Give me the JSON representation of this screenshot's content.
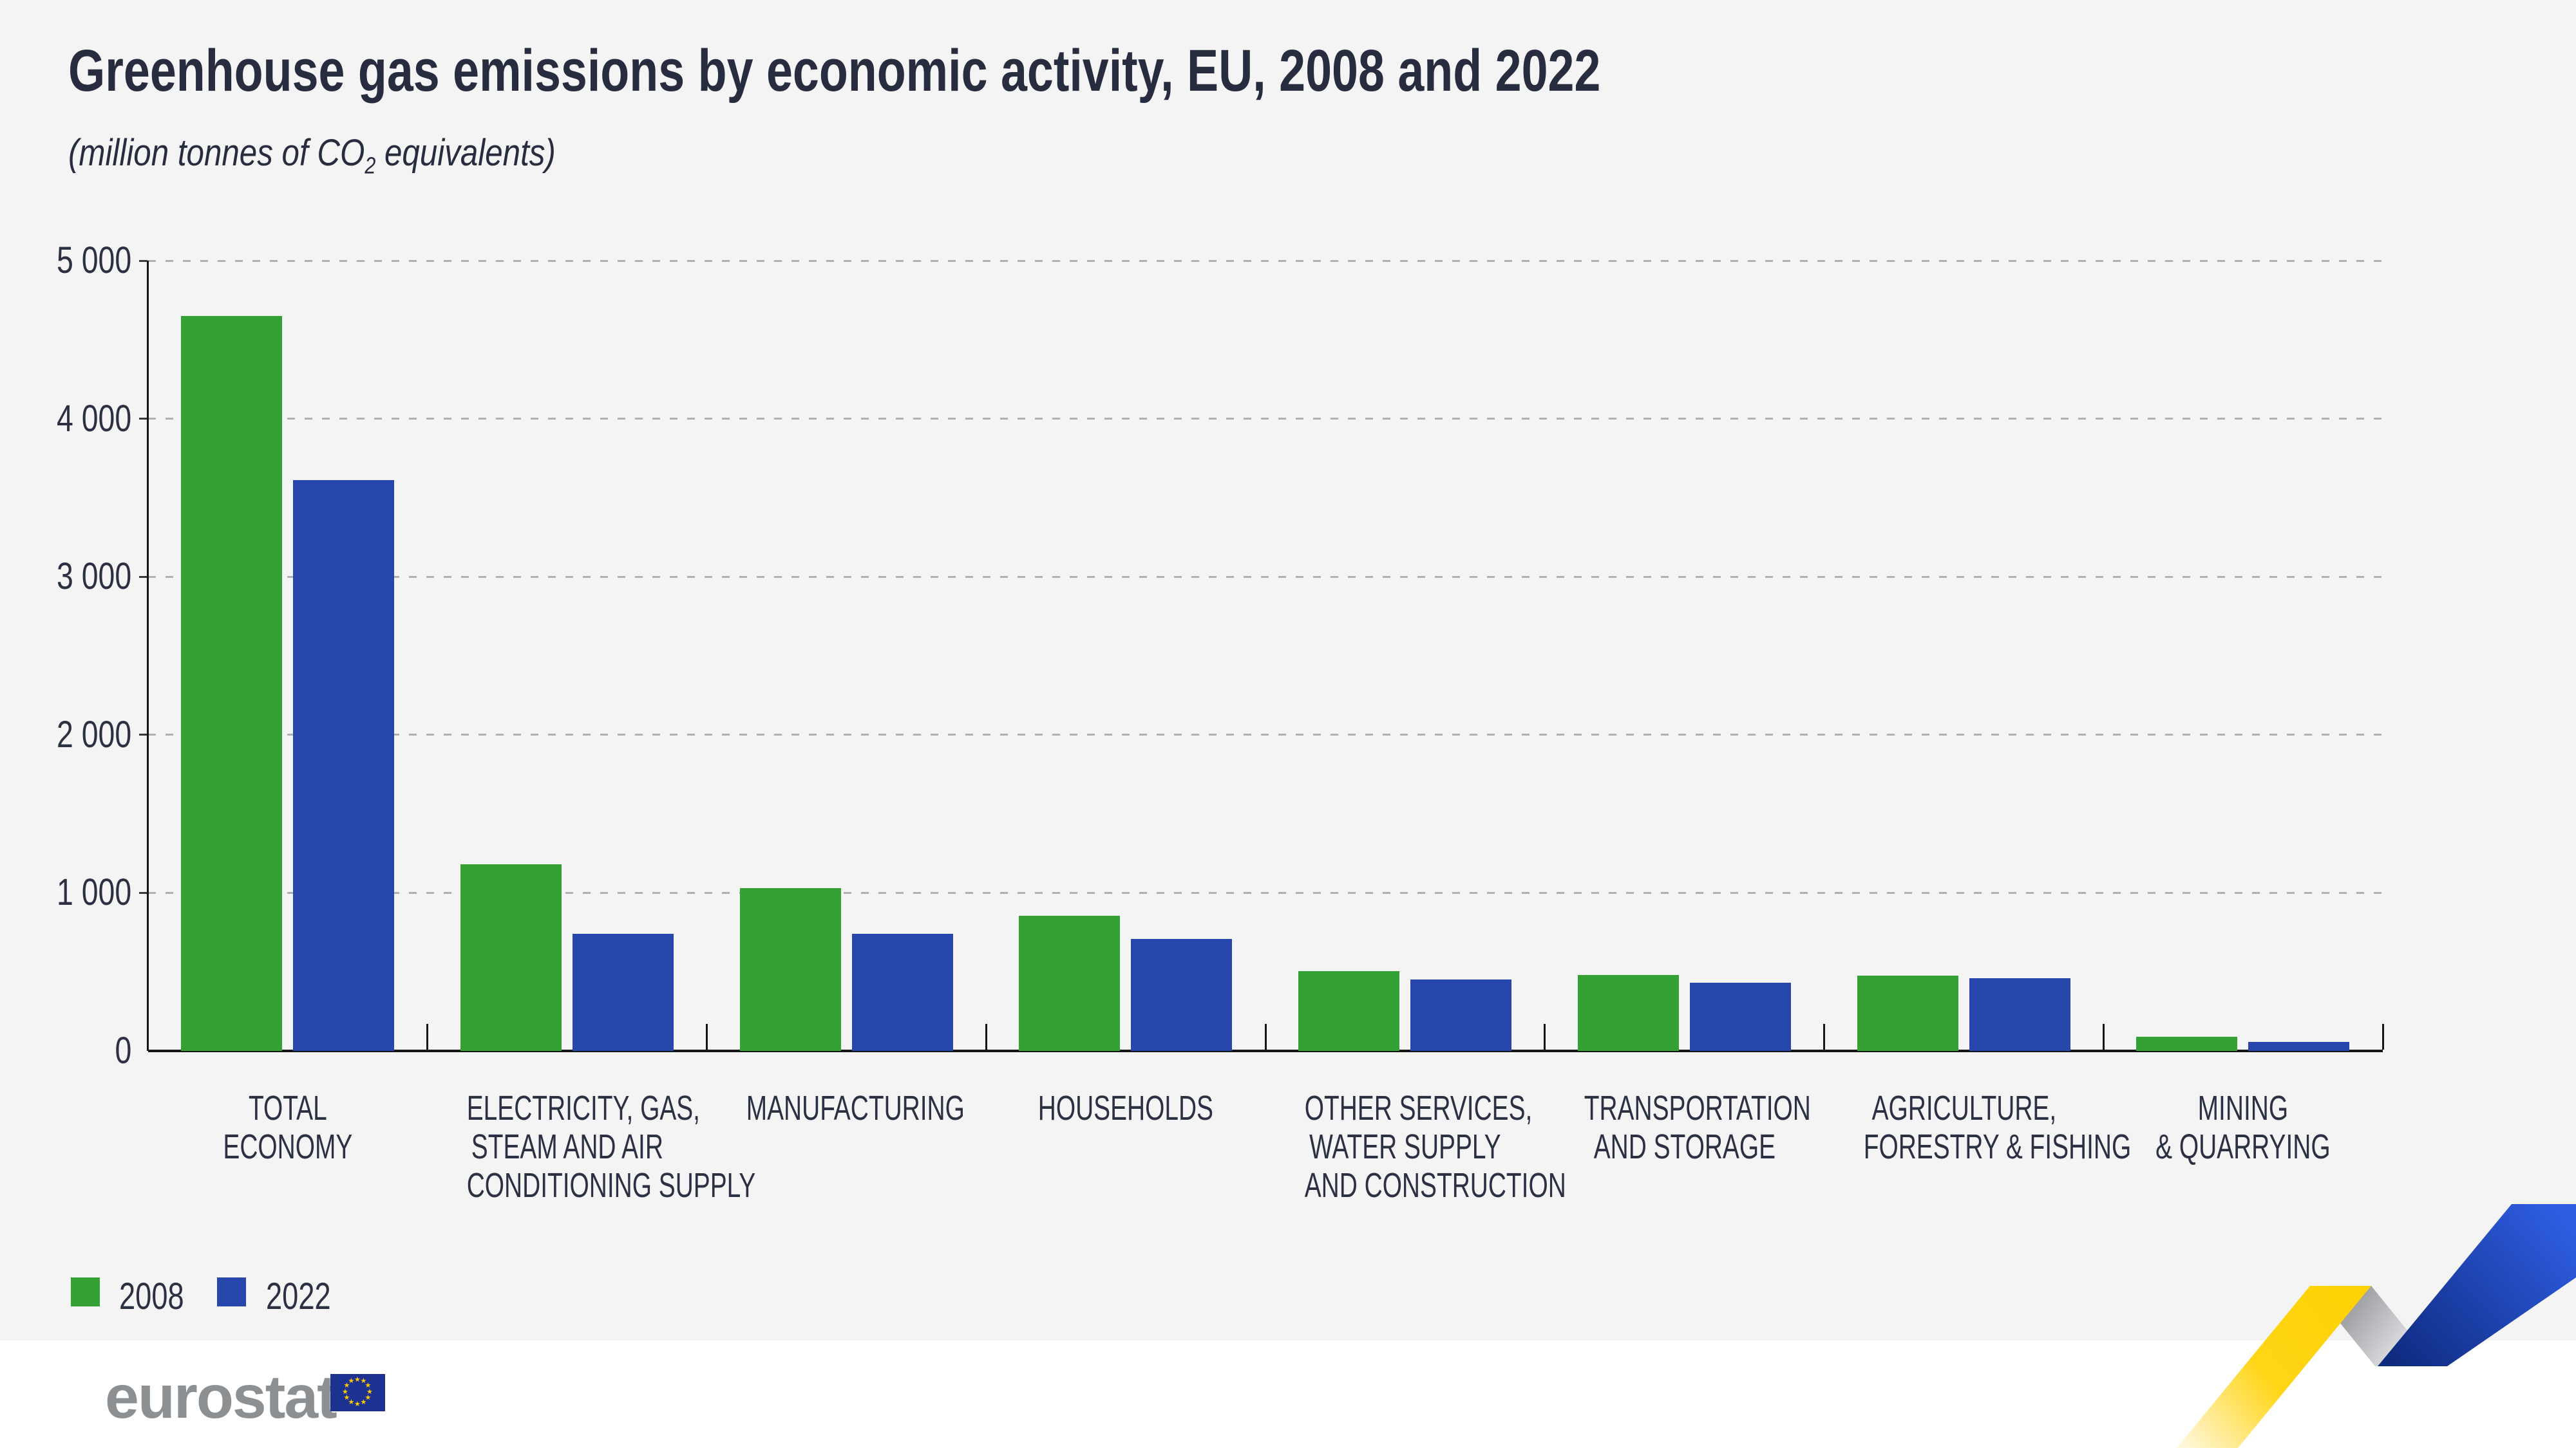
{
  "title": "Greenhouse gas emissions by economic activity, EU, 2008 and 2022",
  "subtitle": {
    "prefix": "(million tonnes of CO",
    "sub": "2",
    "suffix": " equivalents)"
  },
  "chart_data": {
    "type": "bar",
    "title": "Greenhouse gas emissions by economic activity, EU, 2008 and 2022",
    "unit": "million tonnes of CO2 equivalents",
    "categories": [
      [
        "TOTAL",
        "ECONOMY"
      ],
      [
        "ELECTRICITY, GAS,",
        "STEAM AND AIR",
        "CONDITIONING SUPPLY"
      ],
      [
        "MANUFACTURING"
      ],
      [
        "HOUSEHOLDS"
      ],
      [
        "OTHER SERVICES,",
        "WATER SUPPLY",
        "AND CONSTRUCTION"
      ],
      [
        "TRANSPORTATION",
        "AND STORAGE"
      ],
      [
        "AGRICULTURE,",
        "FORESTRY & FISHING"
      ],
      [
        "MINING",
        "& QUARRYING"
      ]
    ],
    "series": [
      {
        "name": "2008",
        "color": "#33A134",
        "values": [
          4650,
          1180,
          1030,
          855,
          505,
          480,
          475,
          90
        ]
      },
      {
        "name": "2022",
        "color": "#2847AC",
        "values": [
          3610,
          740,
          740,
          710,
          450,
          430,
          460,
          55
        ]
      }
    ],
    "ylim": [
      0,
      5000
    ],
    "ytick_labels": [
      "5 000",
      "4 000",
      "3 000",
      "2 000",
      "1 000",
      "0"
    ],
    "grid": "horizontal-dashed",
    "legend_position": "bottom-left"
  },
  "legend": {
    "items": [
      {
        "label": "2008",
        "color": "#33A134"
      },
      {
        "label": "2022",
        "color": "#2847AC"
      }
    ]
  },
  "footer": {
    "logo_text": "eurostat",
    "flag": {
      "star_glyph": "★",
      "blue": "#1C3190",
      "star_color": "#FFCC00"
    }
  },
  "colors": {
    "background": "#F4F4F5",
    "footer_background": "#FFFFFF",
    "text": "#2B3142",
    "gridline": "#AEB0B3",
    "axis": "#161616",
    "logo_gray": "#8D9093",
    "bar_2008": "#33A134",
    "bar_2022": "#2847AC",
    "ribbon_yellow": "#FFD500",
    "ribbon_gray": "#9A9CA0",
    "ribbon_blue": "#1D3FBF"
  }
}
